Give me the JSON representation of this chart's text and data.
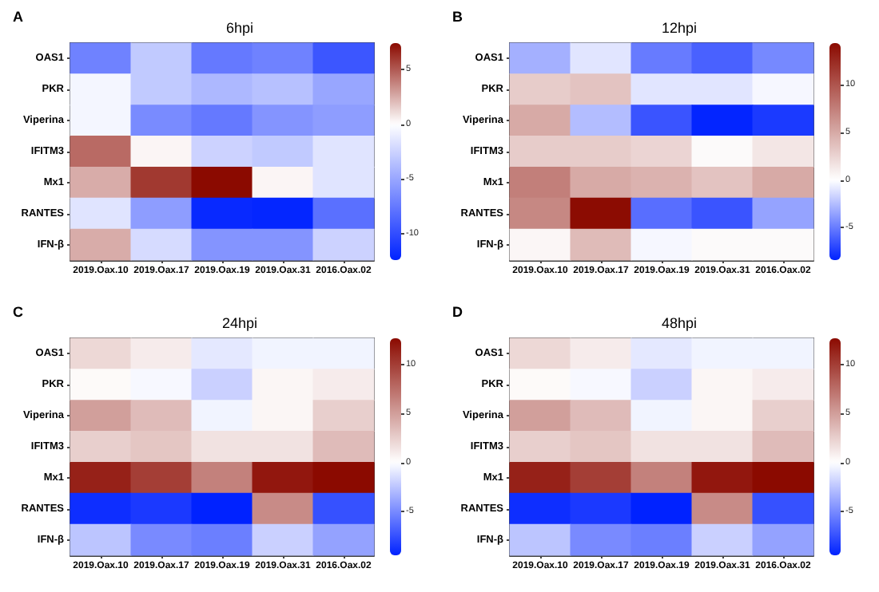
{
  "chart_data": [
    {
      "type": "heatmap",
      "title": "6hpi",
      "annotations": [
        "A"
      ],
      "categories": [
        "2019.Oax.10",
        "2019.Oax.17",
        "2019.Oax.19",
        "2019.Oax.31",
        "2016.Oax.02"
      ],
      "y_categories": [
        "OAS1",
        "PKR",
        "Viperina",
        "IFITM3",
        "Mx1",
        "RANTES",
        "IFN-β"
      ],
      "cells": [
        [
          -7,
          -3,
          -7.5,
          -7,
          -9.5
        ],
        [
          -0.5,
          -3,
          -4,
          -3.5,
          -5
        ],
        [
          -0.5,
          -6.5,
          -7.5,
          -6,
          -5.5
        ],
        [
          4.5,
          0.3,
          -2.5,
          -3,
          -1.5
        ],
        [
          2.5,
          6,
          7.4,
          0.3,
          -1.5
        ],
        [
          -1.5,
          -5.5,
          -12,
          -12.2,
          -8
        ],
        [
          2.5,
          -2,
          -6,
          -6,
          -2.5
        ]
      ],
      "clim": [
        -12.4,
        7.4
      ],
      "cticks": [
        -10,
        -5,
        0,
        5
      ]
    },
    {
      "type": "heatmap",
      "title": "12hpi",
      "annotations": [
        "B"
      ],
      "categories": [
        "2019.Oax.10",
        "2019.Oax.17",
        "2019.Oax.19",
        "2019.Oax.31",
        "2016.Oax.02"
      ],
      "y_categories": [
        "OAS1",
        "PKR",
        "Viperina",
        "IFITM3",
        "Mx1",
        "RANTES",
        "IFN-β"
      ],
      "cells": [
        [
          -3,
          -1,
          -5,
          -6,
          -4.5
        ],
        [
          3,
          3.5,
          -1,
          -1,
          -0.3
        ],
        [
          5,
          -2.5,
          -6.5,
          -8.3,
          -7.5
        ],
        [
          3,
          3,
          2.5,
          0.3,
          1.5
        ],
        [
          7.5,
          5,
          4.5,
          3.5,
          5
        ],
        [
          7,
          14.3,
          -5.5,
          -6.5,
          -3.5
        ],
        [
          0.5,
          4,
          -0.3,
          0.3,
          0.3
        ]
      ],
      "clim": [
        -8.4,
        14.4
      ],
      "cticks": [
        -5,
        0,
        5,
        10
      ]
    },
    {
      "type": "heatmap",
      "title": "24hpi",
      "annotations": [
        "C"
      ],
      "categories": [
        "2019.Oax.10",
        "2019.Oax.17",
        "2019.Oax.19",
        "2019.Oax.31",
        "2016.Oax.02"
      ],
      "y_categories": [
        "OAS1",
        "PKR",
        "Viperina",
        "IFITM3",
        "Mx1",
        "RANTES",
        "IFN-β"
      ],
      "cells": [
        [
          2,
          1,
          -1,
          -0.5,
          -0.5
        ],
        [
          0.3,
          -0.3,
          -2,
          0.5,
          1
        ],
        [
          5,
          3.5,
          -0.5,
          0.5,
          2.5
        ],
        [
          2.5,
          3,
          1.5,
          1.5,
          3.5
        ],
        [
          11.5,
          10,
          6.5,
          12,
          12.7
        ],
        [
          -9,
          -8.5,
          -9.5,
          6,
          -7.5
        ],
        [
          -2.5,
          -5,
          -5.5,
          -2,
          -4
        ]
      ],
      "clim": [
        -9.5,
        12.7
      ],
      "cticks": [
        -5,
        0,
        5,
        10
      ]
    },
    {
      "type": "heatmap",
      "title": "48hpi",
      "annotations": [
        "D"
      ],
      "categories": [
        "2019.Oax.10",
        "2019.Oax.17",
        "2019.Oax.19",
        "2019.Oax.31",
        "2016.Oax.02"
      ],
      "y_categories": [
        "OAS1",
        "PKR",
        "Viperina",
        "IFITM3",
        "Mx1",
        "RANTES",
        "IFN-β"
      ],
      "cells": [
        [
          2,
          1,
          -1,
          -0.5,
          -0.5
        ],
        [
          0.3,
          -0.3,
          -2,
          0.5,
          1
        ],
        [
          5,
          3.5,
          -0.5,
          0.5,
          2.5
        ],
        [
          2.5,
          3,
          1.5,
          1.5,
          3.5
        ],
        [
          11.5,
          10,
          6.5,
          12,
          12.7
        ],
        [
          -9,
          -8.5,
          -9.5,
          6,
          -7.5
        ],
        [
          -2.5,
          -5,
          -5.5,
          -2,
          -4
        ]
      ],
      "clim": [
        -9.5,
        12.7
      ],
      "cticks": [
        -5,
        0,
        5,
        10
      ]
    }
  ]
}
